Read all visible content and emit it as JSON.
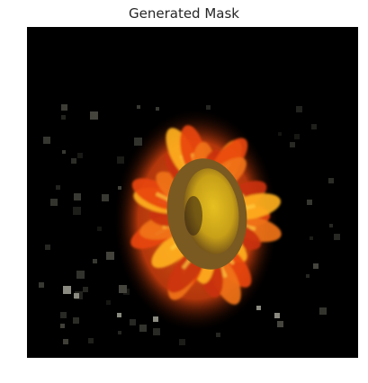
{
  "figure": {
    "title": "Generated Mask"
  },
  "image": {
    "subject": "flower-image",
    "background_color": "#000000",
    "petal_colors": [
      "#e8450f",
      "#f0731a",
      "#c9320c",
      "#ffb020"
    ],
    "center_color": "#c8a018",
    "center_ring_color": "#7a5a20"
  }
}
